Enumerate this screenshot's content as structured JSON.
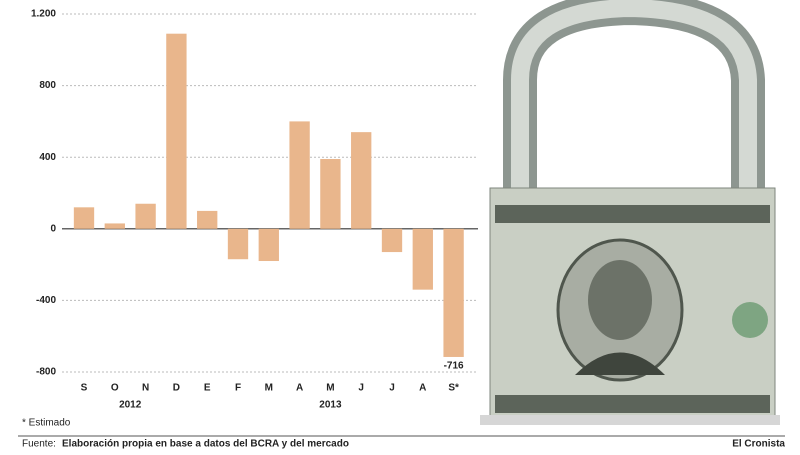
{
  "chart_data": {
    "type": "bar",
    "categories": [
      "S",
      "O",
      "N",
      "D",
      "E",
      "F",
      "M",
      "A",
      "M",
      "J",
      "J",
      "A",
      "S*"
    ],
    "values": [
      120,
      30,
      140,
      1090,
      100,
      -170,
      -180,
      600,
      390,
      540,
      -130,
      -340,
      -716
    ],
    "color": "#e9b68c",
    "ylim": [
      -800,
      1200
    ],
    "yticks": [
      -800,
      -400,
      0,
      400,
      {
        "value": 800,
        "label": "800"
      },
      {
        "value": 1200,
        "label": "1.200"
      }
    ],
    "grid": true,
    "year_labels": [
      "2012",
      "2013"
    ],
    "footnote": "* Estimado",
    "source_label": "Fuente:",
    "source": "Elaboración propia en base a datos del BCRA y del mercado",
    "publisher": "El Cronista"
  }
}
